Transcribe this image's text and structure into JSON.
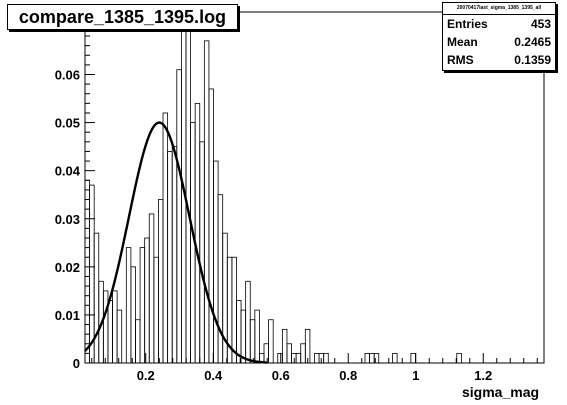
{
  "chart_data": {
    "type": "bar",
    "title": "compare_1385_1395.log",
    "xlabel": "sigma_mag",
    "ylabel": "",
    "xlim": [
      0.02,
      1.38
    ],
    "ylim": [
      0,
      0.073
    ],
    "x_ticks": [
      0.2,
      0.4,
      0.6,
      0.8,
      1,
      1.2
    ],
    "x_tick_labels": [
      "0.2",
      "0.4",
      "0.6",
      "0.8",
      "1",
      "1.2"
    ],
    "y_ticks": [
      0,
      0.01,
      0.02,
      0.03,
      0.04,
      0.05,
      0.06,
      0.07
    ],
    "y_tick_labels": [
      "0",
      "0.01",
      "0.02",
      "0.03",
      "0.04",
      "0.05",
      "0.06",
      "0.07"
    ],
    "bin_start": 0.02,
    "bin_width": 0.0136,
    "values": [
      0.038,
      0.037,
      0.027,
      0.017,
      0.015,
      0.013,
      0.015,
      0.011,
      0.0,
      0.024,
      0.02,
      0.009,
      0.024,
      0.026,
      0.031,
      0.022,
      0.034,
      0.052,
      0.044,
      0.045,
      0.061,
      0.073,
      0.07,
      0.05,
      0.054,
      0.046,
      0.067,
      0.057,
      0.042,
      0.035,
      0.027,
      0.022,
      0.022,
      0.013,
      0.011,
      0.017,
      0.009,
      0.011,
      0.002,
      0.004,
      0.009,
      0.0,
      0.002,
      0.007,
      0.004,
      0.002,
      0.002,
      0.004,
      0.007,
      0.0,
      0.002,
      0.002,
      0.002,
      0.0,
      0.0,
      0.0,
      0.0,
      0.0,
      0.0,
      0.0,
      0.0,
      0.002,
      0.002,
      0.002,
      0.0,
      0.0,
      0.0,
      0.002,
      0.0,
      0.0,
      0.0,
      0.002,
      0.0,
      0.0,
      0.0,
      0.0,
      0.0,
      0.0,
      0.0,
      0.0,
      0.0,
      0.002,
      0.0,
      0.0,
      0.0,
      0.0,
      0.0,
      0.0,
      0.0,
      0.0,
      0.0,
      0.0,
      0.0,
      0.0,
      0.0,
      0.0,
      0.0,
      0.0,
      0.0,
      0.0
    ],
    "fit": {
      "type": "gaussian",
      "mean": 0.24,
      "sigma": 0.09,
      "peak": 0.05
    },
    "stats": {
      "header": "20070417last_sigma_1385_1395_all",
      "rows": [
        {
          "label": "Entries",
          "value": "453"
        },
        {
          "label": "Mean",
          "value": "0.2465"
        },
        {
          "label": "RMS",
          "value": "0.1359"
        }
      ]
    }
  }
}
